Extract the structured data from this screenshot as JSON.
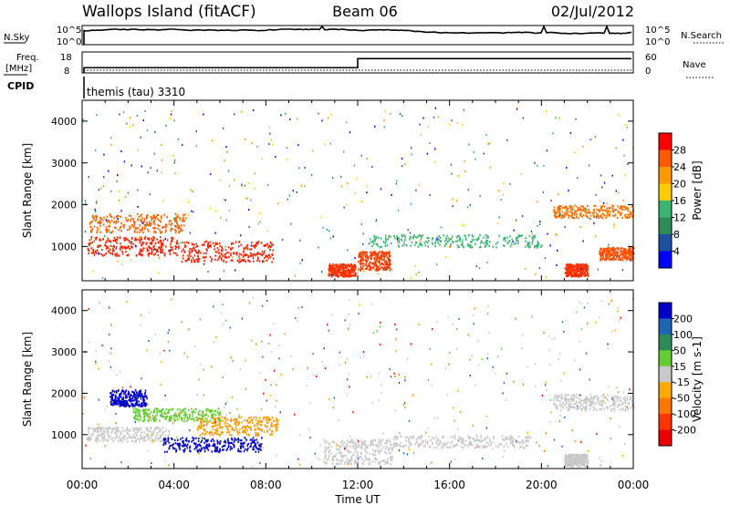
{
  "header": {
    "station": "Wallops Island (fitACF)",
    "beam": "Beam 06",
    "date": "02/Jul/2012"
  },
  "noise_panel": {
    "left_label": "N.Sky",
    "left_ticks": [
      "10^5",
      "10^0"
    ],
    "right_label": "N.Search",
    "right_ticks": [
      "10^5",
      "10^0"
    ]
  },
  "freq_panel": {
    "left_label_1": "Freq.",
    "left_label_2": "[MHz]",
    "left_ticks": [
      "18",
      "8"
    ],
    "right_label": "Nave",
    "right_ticks": [
      "60",
      "0"
    ]
  },
  "cpid": {
    "label": "CPID",
    "program": "themis (tau) 3310"
  },
  "power_colorbar": {
    "label": "Power [dB]",
    "ticks": [
      "28",
      "24",
      "20",
      "16",
      "12",
      "8",
      "4"
    ],
    "colors": [
      "#ff0000",
      "#ff5a00",
      "#ff9900",
      "#ffcc00",
      "#3cb371",
      "#2e8b57",
      "#1e50a0",
      "#0000ff"
    ]
  },
  "velocity_colorbar": {
    "label": "Velocity [m s-1]",
    "ticks": [
      "200",
      "100",
      "50",
      "15",
      "-15",
      "-50",
      "-100",
      "-200"
    ],
    "colors": [
      "#0000c8",
      "#1e64b4",
      "#2e8b57",
      "#66cc33",
      "#c8c8c8",
      "#ffaa00",
      "#ff7700",
      "#ff3300",
      "#e80000"
    ]
  },
  "chart_data": {
    "type": "heatmap",
    "xlabel": "Time UT",
    "ylabel": "Slant Range [km]",
    "x_ticks": [
      "00:00",
      "04:00",
      "08:00",
      "12:00",
      "16:00",
      "20:00",
      "00:00"
    ],
    "x_range_hours": [
      0,
      24
    ],
    "y_ticks": [
      1000,
      2000,
      3000,
      4000
    ],
    "y_range_km": [
      180,
      4500
    ],
    "frequency_steps": [
      {
        "time_hours": 0,
        "value_mhz": 10.5
      },
      {
        "time_hours": 12,
        "value_mhz": 14.8
      }
    ],
    "echo_regions_power": [
      {
        "t0": 0.2,
        "t1": 4.2,
        "r0": 800,
        "r1": 1250,
        "color": "#ff2000"
      },
      {
        "t0": 0.3,
        "t1": 4.5,
        "r0": 1350,
        "r1": 1800,
        "color": "#ff6000"
      },
      {
        "t0": 4.3,
        "t1": 8.3,
        "r0": 650,
        "r1": 1150,
        "color": "#ff2000"
      },
      {
        "t0": 10.7,
        "t1": 11.9,
        "r0": 300,
        "r1": 600,
        "color": "#ff3000"
      },
      {
        "t0": 12.0,
        "t1": 13.4,
        "r0": 450,
        "r1": 900,
        "color": "#ff4000"
      },
      {
        "t0": 12.5,
        "t1": 20.0,
        "r0": 1000,
        "r1": 1300,
        "color": "#3cb371"
      },
      {
        "t0": 21.0,
        "t1": 22.0,
        "r0": 300,
        "r1": 600,
        "color": "#ff3000"
      },
      {
        "t0": 20.5,
        "t1": 24.0,
        "r0": 1700,
        "r1": 2000,
        "color": "#ff7000"
      },
      {
        "t0": 22.5,
        "t1": 24.0,
        "r0": 700,
        "r1": 1000,
        "color": "#ff5000"
      }
    ],
    "echo_regions_velocity": [
      {
        "t0": 0.2,
        "t1": 3.8,
        "r0": 850,
        "r1": 1200,
        "color": "#c8c8c8"
      },
      {
        "t0": 1.2,
        "t1": 2.8,
        "r0": 1700,
        "r1": 2100,
        "color": "#0000c8"
      },
      {
        "t0": 3.5,
        "t1": 7.8,
        "r0": 600,
        "r1": 950,
        "color": "#0000c8"
      },
      {
        "t0": 5.0,
        "t1": 8.5,
        "r0": 1000,
        "r1": 1450,
        "color": "#ff9900"
      },
      {
        "t0": 2.2,
        "t1": 6.0,
        "r0": 1350,
        "r1": 1650,
        "color": "#66cc33"
      },
      {
        "t0": 10.5,
        "t1": 13.5,
        "r0": 300,
        "r1": 900,
        "color": "#c8c8c8"
      },
      {
        "t0": 13.5,
        "t1": 19.5,
        "r0": 700,
        "r1": 1000,
        "color": "#c8c8c8"
      },
      {
        "t0": 20.5,
        "t1": 24.0,
        "r0": 1600,
        "r1": 2000,
        "color": "#c8c8c8"
      },
      {
        "t0": 21.0,
        "t1": 22.0,
        "r0": 250,
        "r1": 550,
        "color": "#c8c8c8"
      }
    ]
  }
}
